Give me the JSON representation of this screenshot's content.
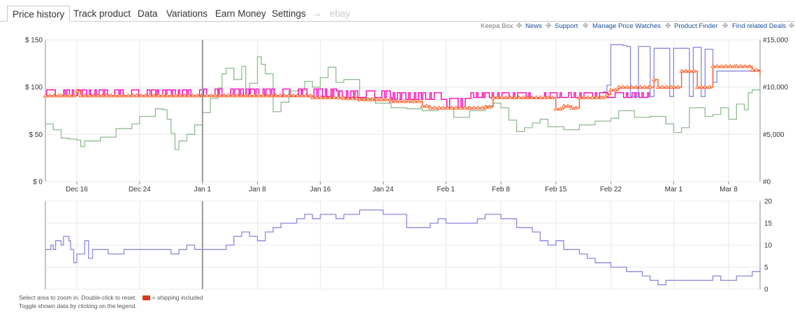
{
  "tabs": {
    "items": [
      {
        "label": "Price history",
        "active": true
      },
      {
        "label": "Track product"
      },
      {
        "label": "Data"
      },
      {
        "label": "Variations"
      },
      {
        "label": "Earn Money"
      },
      {
        "label": "Settings"
      }
    ],
    "arrow": "→",
    "ebay": "ebay"
  },
  "links": {
    "box": "Keepa Box",
    "news": "News",
    "support": "Support",
    "watches": "Manage Price Watches",
    "finder": "Product Finder",
    "deals": "Find related Deals",
    "sep": "✤"
  },
  "footer": {
    "line1": "Select area to zoom in. Double-click to reset.",
    "shipping": "= shipping included",
    "line2": "Toggle shown data by clicking on the legend."
  },
  "colors": {
    "new_price": "#ff00b4",
    "third_party": "#ff5722",
    "amazon": "#8888dd",
    "sales_rank": "#8fbc8f",
    "offer_count": "#8888dd",
    "grid": "#e8e8e8",
    "cursor": "#999999"
  },
  "chart_data": [
    {
      "type": "line",
      "x_unit": "days",
      "x_ticks": [
        "Dec 16",
        "Dec 24",
        "Jan 1",
        "Jan 8",
        "Jan 16",
        "Jan 24",
        "Feb 1",
        "Feb 8",
        "Feb 15",
        "Feb 22",
        "Mar 1",
        "Mar 8"
      ],
      "x_tick_days": [
        4,
        12,
        20,
        27,
        35,
        43,
        51,
        58,
        65,
        72,
        80,
        87
      ],
      "x_range": [
        0,
        91
      ],
      "ylim": [
        0,
        150
      ],
      "y_ticks": [
        "$ 0",
        "$ 50",
        "$ 100",
        "$ 150"
      ],
      "y2lim": [
        0,
        15000
      ],
      "y2_ticks": [
        "#0",
        "#5,000",
        "#10,000",
        "#15,000"
      ],
      "grid": true,
      "cursor_day": 20,
      "series": [
        {
          "key": "new_price",
          "axis": "left",
          "style": "spiky",
          "low": [
            [
              0,
              91
            ],
            [
              20,
              91
            ],
            [
              30,
              90
            ],
            [
              37,
              89
            ],
            [
              44,
              87
            ],
            [
              51,
              78
            ],
            [
              54,
              89
            ],
            [
              62,
              78
            ],
            [
              63,
              89
            ],
            [
              71,
              89
            ],
            [
              77,
              89
            ]
          ],
          "high": [
            [
              0,
              97
            ],
            [
              20,
              98
            ],
            [
              30,
              98
            ],
            [
              37,
              96
            ],
            [
              44,
              94
            ],
            [
              51,
              88
            ],
            [
              54,
              94
            ],
            [
              62,
              88
            ],
            [
              63,
              94
            ],
            [
              71,
              94
            ],
            [
              77,
              94
            ]
          ],
          "range": [
            0,
            77
          ]
        },
        {
          "key": "third_party",
          "axis": "left",
          "points": [
            [
              0,
              91
            ],
            [
              2,
              91
            ],
            [
              4,
              96
            ],
            [
              4.5,
              91
            ],
            [
              20,
              91
            ],
            [
              34,
              89
            ],
            [
              38,
              88
            ],
            [
              40,
              87
            ],
            [
              44,
              85
            ],
            [
              47,
              85
            ],
            [
              48,
              80
            ],
            [
              49,
              78
            ],
            [
              54,
              78
            ],
            [
              56,
              79
            ],
            [
              57,
              89
            ],
            [
              64,
              89
            ],
            [
              65,
              77
            ],
            [
              66,
              80
            ],
            [
              67,
              78
            ],
            [
              68,
              89
            ],
            [
              71,
              89
            ],
            [
              71.5,
              92
            ],
            [
              72,
              97
            ],
            [
              73,
              100
            ],
            [
              77,
              100
            ],
            [
              77.5,
              108
            ],
            [
              78,
              100
            ],
            [
              80,
              100
            ],
            [
              81,
              117
            ],
            [
              82,
              117
            ],
            [
              83,
              100
            ],
            [
              84,
              100
            ],
            [
              85,
              122
            ],
            [
              88,
              122
            ],
            [
              90,
              118
            ],
            [
              91,
              113
            ]
          ]
        },
        {
          "key": "amazon",
          "axis": "left",
          "range": [
            71,
            91
          ],
          "points": [
            [
              71,
              95
            ],
            [
              71.5,
              102
            ],
            [
              72,
              145
            ],
            [
              73.5,
              144
            ],
            [
              74,
              143
            ],
            [
              74.5,
              90
            ],
            [
              75,
              90
            ],
            [
              75.5,
              143
            ],
            [
              76.5,
              143
            ],
            [
              77,
              90
            ],
            [
              77.5,
              141
            ],
            [
              79,
              141
            ],
            [
              79.5,
              90
            ],
            [
              80,
              141
            ],
            [
              81.5,
              141
            ],
            [
              82,
              90
            ],
            [
              82.5,
              142
            ],
            [
              83,
              142
            ],
            [
              83.5,
              90
            ],
            [
              84,
              140
            ],
            [
              84.5,
              140
            ],
            [
              85,
              105
            ],
            [
              85.5,
              117
            ],
            [
              86,
              117
            ],
            [
              91,
              117
            ]
          ]
        },
        {
          "key": "sales_rank",
          "axis": "right",
          "points": [
            [
              0,
              6100
            ],
            [
              1,
              5500
            ],
            [
              2,
              4600
            ],
            [
              3,
              4500
            ],
            [
              4,
              4400
            ],
            [
              4.5,
              3700
            ],
            [
              5,
              4300
            ],
            [
              7,
              4700
            ],
            [
              9,
              5600
            ],
            [
              11,
              6100
            ],
            [
              12,
              6900
            ],
            [
              14,
              7700
            ],
            [
              15,
              7600
            ],
            [
              15.5,
              6600
            ],
            [
              16,
              5100
            ],
            [
              16.5,
              3400
            ],
            [
              17,
              4300
            ],
            [
              18,
              5000
            ],
            [
              19,
              6000
            ],
            [
              20,
              7300
            ],
            [
              21,
              8800
            ],
            [
              22,
              9900
            ],
            [
              22.5,
              11400
            ],
            [
              23,
              12000
            ],
            [
              24,
              10800
            ],
            [
              25,
              12200
            ],
            [
              25.5,
              9200
            ],
            [
              26,
              10400
            ],
            [
              27,
              13200
            ],
            [
              27.5,
              12400
            ],
            [
              28,
              11400
            ],
            [
              29,
              7400
            ],
            [
              30,
              8400
            ],
            [
              31,
              9600
            ],
            [
              33,
              10600
            ],
            [
              34,
              10000
            ],
            [
              35,
              11000
            ],
            [
              36,
              12100
            ],
            [
              37,
              10500
            ],
            [
              38,
              10800
            ],
            [
              40,
              8800
            ],
            [
              42,
              8300
            ],
            [
              44,
              7800
            ],
            [
              46,
              7700
            ],
            [
              48,
              7500
            ],
            [
              50,
              7800
            ],
            [
              52,
              6800
            ],
            [
              54,
              7500
            ],
            [
              56,
              8000
            ],
            [
              57,
              8300
            ],
            [
              58,
              7800
            ],
            [
              59,
              6500
            ],
            [
              60,
              5300
            ],
            [
              61,
              5700
            ],
            [
              62,
              6200
            ],
            [
              63,
              6600
            ],
            [
              64,
              5800
            ],
            [
              66,
              5500
            ],
            [
              68,
              6000
            ],
            [
              70,
              6400
            ],
            [
              72,
              6700
            ],
            [
              73,
              7500
            ],
            [
              75,
              6800
            ],
            [
              77,
              6900
            ],
            [
              79,
              6100
            ],
            [
              80,
              5200
            ],
            [
              81,
              5700
            ],
            [
              82,
              7800
            ],
            [
              84,
              6900
            ],
            [
              85,
              7100
            ],
            [
              86,
              7800
            ],
            [
              87,
              6600
            ],
            [
              88,
              8200
            ],
            [
              89,
              7600
            ],
            [
              89.5,
              9400
            ],
            [
              90,
              9700
            ],
            [
              91,
              8700
            ]
          ]
        }
      ]
    },
    {
      "type": "line",
      "ylim": [
        0,
        20
      ],
      "y2_ticks": [
        "0",
        "5",
        "10",
        "15",
        "20"
      ],
      "x_range": [
        0,
        91
      ],
      "grid": true,
      "cursor_day": 20,
      "series": [
        {
          "key": "offer_count",
          "axis": "right",
          "points": [
            [
              0,
              9
            ],
            [
              0.7,
              10
            ],
            [
              1,
              9
            ],
            [
              1.3,
              11
            ],
            [
              2,
              10
            ],
            [
              2.3,
              12
            ],
            [
              3,
              11
            ],
            [
              3.2,
              9
            ],
            [
              3.6,
              6
            ],
            [
              4,
              8
            ],
            [
              5,
              11
            ],
            [
              5.5,
              7
            ],
            [
              6,
              9
            ],
            [
              8,
              8
            ],
            [
              10,
              9
            ],
            [
              14,
              9
            ],
            [
              16,
              8
            ],
            [
              17,
              9
            ],
            [
              18,
              10
            ],
            [
              19,
              9
            ],
            [
              20,
              9
            ],
            [
              22,
              9
            ],
            [
              23,
              10
            ],
            [
              24,
              12
            ],
            [
              25,
              13
            ],
            [
              26,
              12
            ],
            [
              27,
              11
            ],
            [
              28,
              13
            ],
            [
              29,
              14
            ],
            [
              30,
              15
            ],
            [
              31,
              15
            ],
            [
              32,
              16
            ],
            [
              33,
              17
            ],
            [
              34,
              16
            ],
            [
              35,
              17
            ],
            [
              36,
              17
            ],
            [
              37,
              16
            ],
            [
              38,
              17
            ],
            [
              40,
              18
            ],
            [
              43,
              17
            ],
            [
              46,
              14
            ],
            [
              48,
              14
            ],
            [
              49,
              15
            ],
            [
              50,
              16
            ],
            [
              51,
              15
            ],
            [
              53,
              15
            ],
            [
              55,
              16
            ],
            [
              56,
              17
            ],
            [
              58,
              16
            ],
            [
              60,
              14
            ],
            [
              62,
              13
            ],
            [
              63,
              11
            ],
            [
              64,
              10
            ],
            [
              65,
              11
            ],
            [
              66,
              9
            ],
            [
              68,
              8
            ],
            [
              69,
              7
            ],
            [
              70,
              6
            ],
            [
              72,
              5
            ],
            [
              74,
              4
            ],
            [
              76,
              3
            ],
            [
              77,
              2
            ],
            [
              78,
              1
            ],
            [
              79,
              2
            ],
            [
              80,
              2
            ],
            [
              82,
              2
            ],
            [
              84,
              2
            ],
            [
              85,
              3
            ],
            [
              86,
              2
            ],
            [
              88,
              3
            ],
            [
              90,
              4
            ],
            [
              91,
              5
            ]
          ]
        }
      ]
    }
  ]
}
